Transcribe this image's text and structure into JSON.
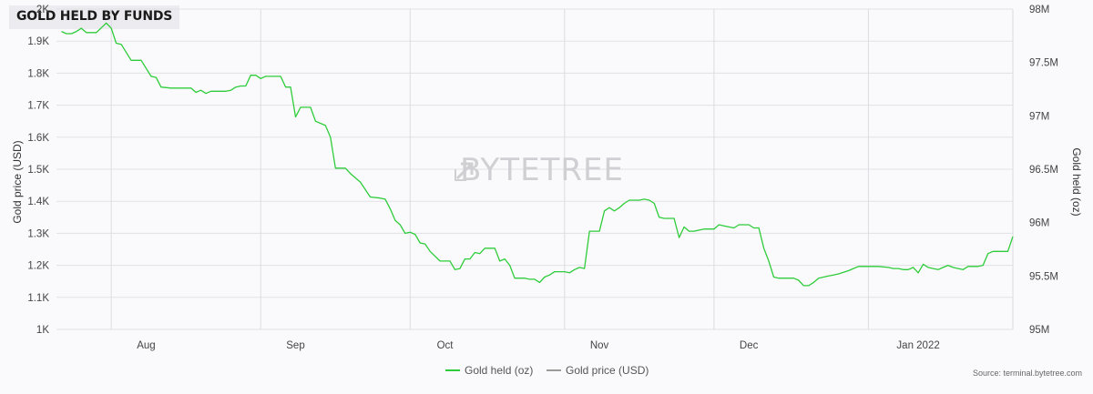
{
  "chart_data": {
    "type": "line",
    "title": "GOLD HELD BY FUNDS",
    "watermark": "BYTETREE",
    "source": "Source: terminal.bytetree.com",
    "left_axis": {
      "label": "Gold price (USD)",
      "ticks": [
        "1K",
        "1.1K",
        "1.2K",
        "1.3K",
        "1.4K",
        "1.5K",
        "1.6K",
        "1.7K",
        "1.8K",
        "1.9K",
        "2K"
      ],
      "range": [
        1000,
        2000
      ]
    },
    "right_axis": {
      "label": "Gold held (oz)",
      "ticks": [
        "95M",
        "95.5M",
        "96M",
        "96.5M",
        "97M",
        "97.5M",
        "98M"
      ],
      "range": [
        95000000,
        98000000
      ]
    },
    "x_axis": {
      "ticks": [
        "Aug",
        "Sep",
        "Oct",
        "Nov",
        "Dec",
        "Jan 2022"
      ],
      "grid_dates": [
        "2021-08-01",
        "2021-08-31",
        "2021-09-30",
        "2021-10-31",
        "2021-11-30",
        "2021-12-31"
      ]
    },
    "legend": [
      {
        "name": "Gold held (oz)",
        "color": "#2ecc3a"
      },
      {
        "name": "Gold price (USD)",
        "color": "#9a9a9a"
      }
    ],
    "series": [
      {
        "name": "Gold held (oz)",
        "color": "#2ecc3a",
        "axis": "right",
        "points": [
          [
            "2021-07-22",
            97.79
          ],
          [
            "2021-07-23",
            97.77
          ],
          [
            "2021-07-24",
            97.77
          ],
          [
            "2021-07-25",
            97.79
          ],
          [
            "2021-07-26",
            97.82
          ],
          [
            "2021-07-27",
            97.78
          ],
          [
            "2021-07-29",
            97.78
          ],
          [
            "2021-07-31",
            97.87
          ],
          [
            "2021-08-01",
            97.82
          ],
          [
            "2021-08-02",
            97.68
          ],
          [
            "2021-08-03",
            97.67
          ],
          [
            "2021-08-05",
            97.52
          ],
          [
            "2021-08-07",
            97.52
          ],
          [
            "2021-08-09",
            97.37
          ],
          [
            "2021-08-10",
            97.36
          ],
          [
            "2021-08-11",
            97.27
          ],
          [
            "2021-08-13",
            97.26
          ],
          [
            "2021-08-17",
            97.26
          ],
          [
            "2021-08-18",
            97.22
          ],
          [
            "2021-08-19",
            97.24
          ],
          [
            "2021-08-20",
            97.21
          ],
          [
            "2021-08-21",
            97.23
          ],
          [
            "2021-08-24",
            97.23
          ],
          [
            "2021-08-25",
            97.24
          ],
          [
            "2021-08-26",
            97.27
          ],
          [
            "2021-08-27",
            97.28
          ],
          [
            "2021-08-28",
            97.28
          ],
          [
            "2021-08-29",
            97.38
          ],
          [
            "2021-08-30",
            97.38
          ],
          [
            "2021-08-31",
            97.35
          ],
          [
            "2021-09-01",
            97.37
          ],
          [
            "2021-09-04",
            97.37
          ],
          [
            "2021-09-05",
            97.27
          ],
          [
            "2021-09-06",
            97.27
          ],
          [
            "2021-09-07",
            96.99
          ],
          [
            "2021-09-08",
            97.08
          ],
          [
            "2021-09-10",
            97.08
          ],
          [
            "2021-09-11",
            96.95
          ],
          [
            "2021-09-13",
            96.91
          ],
          [
            "2021-09-14",
            96.8
          ],
          [
            "2021-09-15",
            96.51
          ],
          [
            "2021-09-17",
            96.51
          ],
          [
            "2021-09-18",
            96.46
          ],
          [
            "2021-09-20",
            96.38
          ],
          [
            "2021-09-22",
            96.24
          ],
          [
            "2021-09-24",
            96.23
          ],
          [
            "2021-09-25",
            96.22
          ],
          [
            "2021-09-26",
            96.13
          ],
          [
            "2021-09-27",
            96.02
          ],
          [
            "2021-09-28",
            95.98
          ],
          [
            "2021-09-29",
            95.9
          ],
          [
            "2021-09-30",
            95.91
          ],
          [
            "2021-10-01",
            95.89
          ],
          [
            "2021-10-02",
            95.81
          ],
          [
            "2021-10-03",
            95.8
          ],
          [
            "2021-10-04",
            95.73
          ],
          [
            "2021-10-06",
            95.64
          ],
          [
            "2021-10-08",
            95.64
          ],
          [
            "2021-10-09",
            95.56
          ],
          [
            "2021-10-10",
            95.57
          ],
          [
            "2021-10-11",
            95.66
          ],
          [
            "2021-10-12",
            95.66
          ],
          [
            "2021-10-13",
            95.72
          ],
          [
            "2021-10-14",
            95.71
          ],
          [
            "2021-10-15",
            95.76
          ],
          [
            "2021-10-17",
            95.76
          ],
          [
            "2021-10-18",
            95.64
          ],
          [
            "2021-10-19",
            95.66
          ],
          [
            "2021-10-20",
            95.6
          ],
          [
            "2021-10-21",
            95.48
          ],
          [
            "2021-10-23",
            95.48
          ],
          [
            "2021-10-24",
            95.47
          ],
          [
            "2021-10-25",
            95.47
          ],
          [
            "2021-10-26",
            95.44
          ],
          [
            "2021-10-27",
            95.49
          ],
          [
            "2021-10-28",
            95.51
          ],
          [
            "2021-10-29",
            95.54
          ],
          [
            "2021-10-31",
            95.54
          ],
          [
            "2021-11-01",
            95.53
          ],
          [
            "2021-11-02",
            95.56
          ],
          [
            "2021-11-03",
            95.58
          ],
          [
            "2021-11-04",
            95.57
          ],
          [
            "2021-11-05",
            95.92
          ],
          [
            "2021-11-06",
            95.92
          ],
          [
            "2021-11-07",
            95.92
          ],
          [
            "2021-11-08",
            96.11
          ],
          [
            "2021-11-09",
            96.14
          ],
          [
            "2021-11-10",
            96.11
          ],
          [
            "2021-11-11",
            96.14
          ],
          [
            "2021-11-12",
            96.18
          ],
          [
            "2021-11-13",
            96.21
          ],
          [
            "2021-11-15",
            96.21
          ],
          [
            "2021-11-16",
            96.22
          ],
          [
            "2021-11-17",
            96.21
          ],
          [
            "2021-11-18",
            96.18
          ],
          [
            "2021-11-19",
            96.05
          ],
          [
            "2021-11-20",
            96.04
          ],
          [
            "2021-11-21",
            96.04
          ],
          [
            "2021-11-22",
            96.04
          ],
          [
            "2021-11-23",
            95.86
          ],
          [
            "2021-11-24",
            95.96
          ],
          [
            "2021-11-25",
            95.92
          ],
          [
            "2021-11-26",
            95.92
          ],
          [
            "2021-11-28",
            95.94
          ],
          [
            "2021-11-30",
            95.94
          ],
          [
            "2021-12-01",
            95.98
          ],
          [
            "2021-12-02",
            95.97
          ],
          [
            "2021-12-03",
            95.96
          ],
          [
            "2021-12-04",
            95.95
          ],
          [
            "2021-12-05",
            95.98
          ],
          [
            "2021-12-07",
            95.98
          ],
          [
            "2021-12-08",
            95.95
          ],
          [
            "2021-12-09",
            95.95
          ],
          [
            "2021-12-10",
            95.76
          ],
          [
            "2021-12-11",
            95.64
          ],
          [
            "2021-12-12",
            95.49
          ],
          [
            "2021-12-13",
            95.48
          ],
          [
            "2021-12-14",
            95.48
          ],
          [
            "2021-12-16",
            95.48
          ],
          [
            "2021-12-17",
            95.46
          ],
          [
            "2021-12-18",
            95.41
          ],
          [
            "2021-12-19",
            95.41
          ],
          [
            "2021-12-20",
            95.44
          ],
          [
            "2021-12-21",
            95.48
          ],
          [
            "2021-12-23",
            95.5
          ],
          [
            "2021-12-24",
            95.51
          ],
          [
            "2021-12-25",
            95.52
          ],
          [
            "2021-12-27",
            95.55
          ],
          [
            "2021-12-28",
            95.57
          ],
          [
            "2021-12-29",
            95.59
          ],
          [
            "2021-12-31",
            95.59
          ],
          [
            "2022-01-01",
            95.59
          ],
          [
            "2022-01-02",
            95.59
          ],
          [
            "2022-01-04",
            95.58
          ],
          [
            "2022-01-05",
            95.57
          ],
          [
            "2022-01-06",
            95.57
          ],
          [
            "2022-01-07",
            95.56
          ],
          [
            "2022-01-08",
            95.56
          ],
          [
            "2022-01-09",
            95.58
          ],
          [
            "2022-01-10",
            95.53
          ],
          [
            "2022-01-11",
            95.61
          ],
          [
            "2022-01-12",
            95.58
          ],
          [
            "2022-01-13",
            95.57
          ],
          [
            "2022-01-14",
            95.56
          ],
          [
            "2022-01-15",
            95.58
          ],
          [
            "2022-01-16",
            95.6
          ],
          [
            "2022-01-17",
            95.58
          ],
          [
            "2022-01-18",
            95.57
          ],
          [
            "2022-01-19",
            95.56
          ],
          [
            "2022-01-20",
            95.59
          ],
          [
            "2022-01-22",
            95.59
          ],
          [
            "2022-01-23",
            95.6
          ],
          [
            "2022-01-24",
            95.71
          ],
          [
            "2022-01-25",
            95.73
          ],
          [
            "2022-01-26",
            95.73
          ],
          [
            "2022-01-27",
            95.73
          ],
          [
            "2022-01-28",
            95.73
          ],
          [
            "2022-01-29",
            95.87
          ]
        ]
      },
      {
        "name": "Gold price (USD)",
        "color": "#9a9a9a",
        "axis": "left",
        "points": []
      }
    ],
    "grid": true,
    "legend_position": "bottom-center"
  }
}
